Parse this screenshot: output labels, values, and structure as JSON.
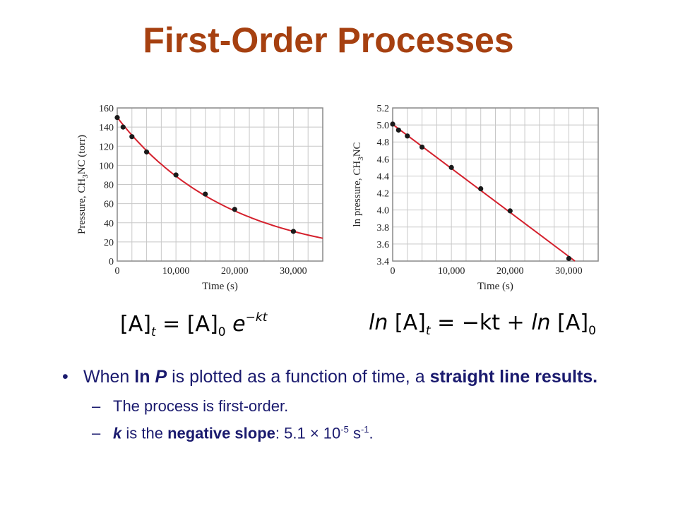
{
  "title": "First-Order Processes",
  "chart_data": [
    {
      "type": "scatter",
      "xlabel": "Time (s)",
      "ylabel": "Pressure, CH3NC (torr)",
      "x_ticks": [
        "0",
        "10,000",
        "20,000",
        "30,000"
      ],
      "y_ticks": [
        "0",
        "20",
        "40",
        "60",
        "80",
        "100",
        "120",
        "140",
        "160"
      ],
      "xlim": [
        0,
        35000
      ],
      "ylim": [
        0,
        160
      ],
      "grid": true,
      "points": {
        "x": [
          0,
          1000,
          2500,
          5000,
          10000,
          15000,
          20000,
          30000
        ],
        "y": [
          150,
          140,
          130,
          114,
          90,
          70,
          54,
          31
        ]
      },
      "fit": "exponential decay",
      "colors": {
        "line": "#d4202c",
        "points": "#1a1a1a"
      }
    },
    {
      "type": "scatter",
      "xlabel": "Time (s)",
      "ylabel": "ln pressure, CH3NC",
      "x_ticks": [
        "0",
        "10,000",
        "20,000",
        "30,000"
      ],
      "y_ticks": [
        "3.4",
        "3.6",
        "3.8",
        "4.0",
        "4.2",
        "4.4",
        "4.6",
        "4.8",
        "5.0",
        "5.2"
      ],
      "xlim": [
        0,
        35000
      ],
      "ylim": [
        3.4,
        5.2
      ],
      "grid": true,
      "points": {
        "x": [
          0,
          1000,
          2500,
          5000,
          10000,
          15000,
          20000,
          30000
        ],
        "y": [
          5.01,
          4.94,
          4.87,
          4.74,
          4.5,
          4.25,
          3.99,
          3.43
        ]
      },
      "fit": "linear",
      "colors": {
        "line": "#d4202c",
        "points": "#1a1a1a"
      }
    }
  ],
  "equations": {
    "left": {
      "A": "[A]",
      "t": "t",
      "eq": "=",
      "A0": "[A]",
      "zero": "0",
      "e": "e",
      "exp": "−kt"
    },
    "right": {
      "ln1": "ln",
      "A": "[A]",
      "t": "t",
      "eq": "= −kt + ",
      "ln2": "ln",
      "A0": "[A]",
      "zero": "0"
    }
  },
  "bullets": {
    "b1_pre": "When ",
    "b1_lnp_ln": "ln ",
    "b1_lnp_p": "P",
    "b1_mid": " is plotted as a function of time, a ",
    "b1_bold": "straight line results.",
    "sub1_dash": "–",
    "sub1": "The process is first-order.",
    "sub2_dash": "–",
    "sub2_k": "k",
    "sub2_mid": " is the ",
    "sub2_bold": "negative slope",
    "sub2_val": ":  5.1 × 10",
    "sub2_exp1": "-5",
    "sub2_unit": " s",
    "sub2_exp2": "-1",
    "sub2_end": "."
  }
}
